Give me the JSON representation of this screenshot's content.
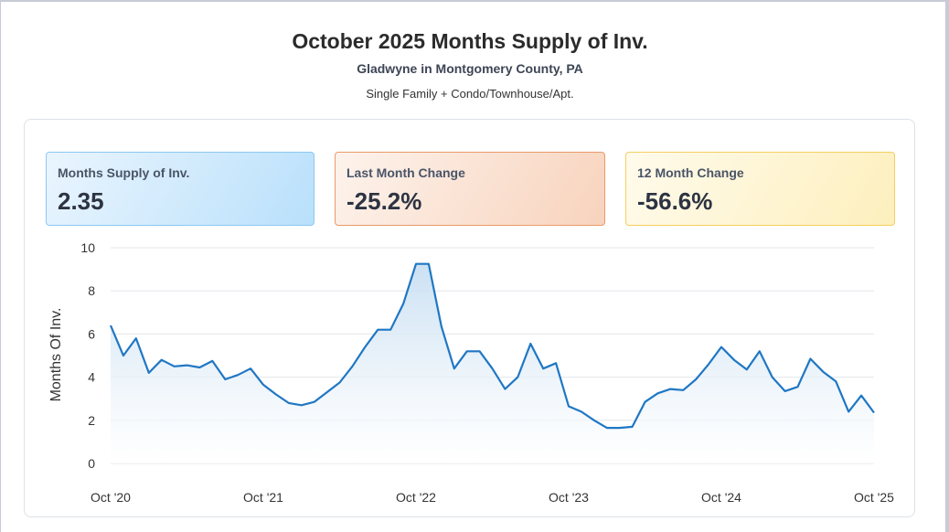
{
  "header": {
    "title": "October 2025 Months Supply of Inv.",
    "location": "Gladwyne in Montgomery County, PA",
    "property_types": "Single Family + Condo/Townhouse/Apt."
  },
  "kpis": [
    {
      "label": "Months Supply of Inv.",
      "value": "2.35"
    },
    {
      "label": "Last Month Change",
      "value": "-25.2%"
    },
    {
      "label": "12 Month Change",
      "value": "-56.6%"
    }
  ],
  "colors": {
    "line": "#1f77c4",
    "area_top": "#c8dff2",
    "grid": "#e3e6ea"
  },
  "chart_data": {
    "type": "area",
    "title": "",
    "xlabel": "",
    "ylabel": "Months Of Inv.",
    "ylim": [
      0,
      10
    ],
    "yticks": [
      0,
      2,
      4,
      6,
      8,
      10
    ],
    "grid": true,
    "x_tick_labels": [
      "Oct '20",
      "Oct '21",
      "Oct '22",
      "Oct '23",
      "Oct '24",
      "Oct '25"
    ],
    "series": [
      {
        "values": [
          6.4,
          5.0,
          5.8,
          4.2,
          4.8,
          4.5,
          4.55,
          4.45,
          4.75,
          3.9,
          4.1,
          4.4,
          3.65,
          3.2,
          2.8,
          2.7,
          2.85,
          3.3,
          3.75,
          4.5,
          5.4,
          6.2,
          6.2,
          7.4,
          9.25,
          9.25,
          6.35,
          4.4,
          5.2,
          5.2,
          4.4,
          3.45,
          4.0,
          5.55,
          4.4,
          4.65,
          2.65,
          2.4,
          2.0,
          1.65,
          1.65,
          1.7,
          2.85,
          3.25,
          3.45,
          3.4,
          3.9,
          4.6,
          5.4,
          4.8,
          4.35,
          5.2,
          4.0,
          3.35,
          3.55,
          4.85,
          4.25,
          3.8,
          2.4,
          3.15,
          2.35
        ]
      }
    ]
  }
}
